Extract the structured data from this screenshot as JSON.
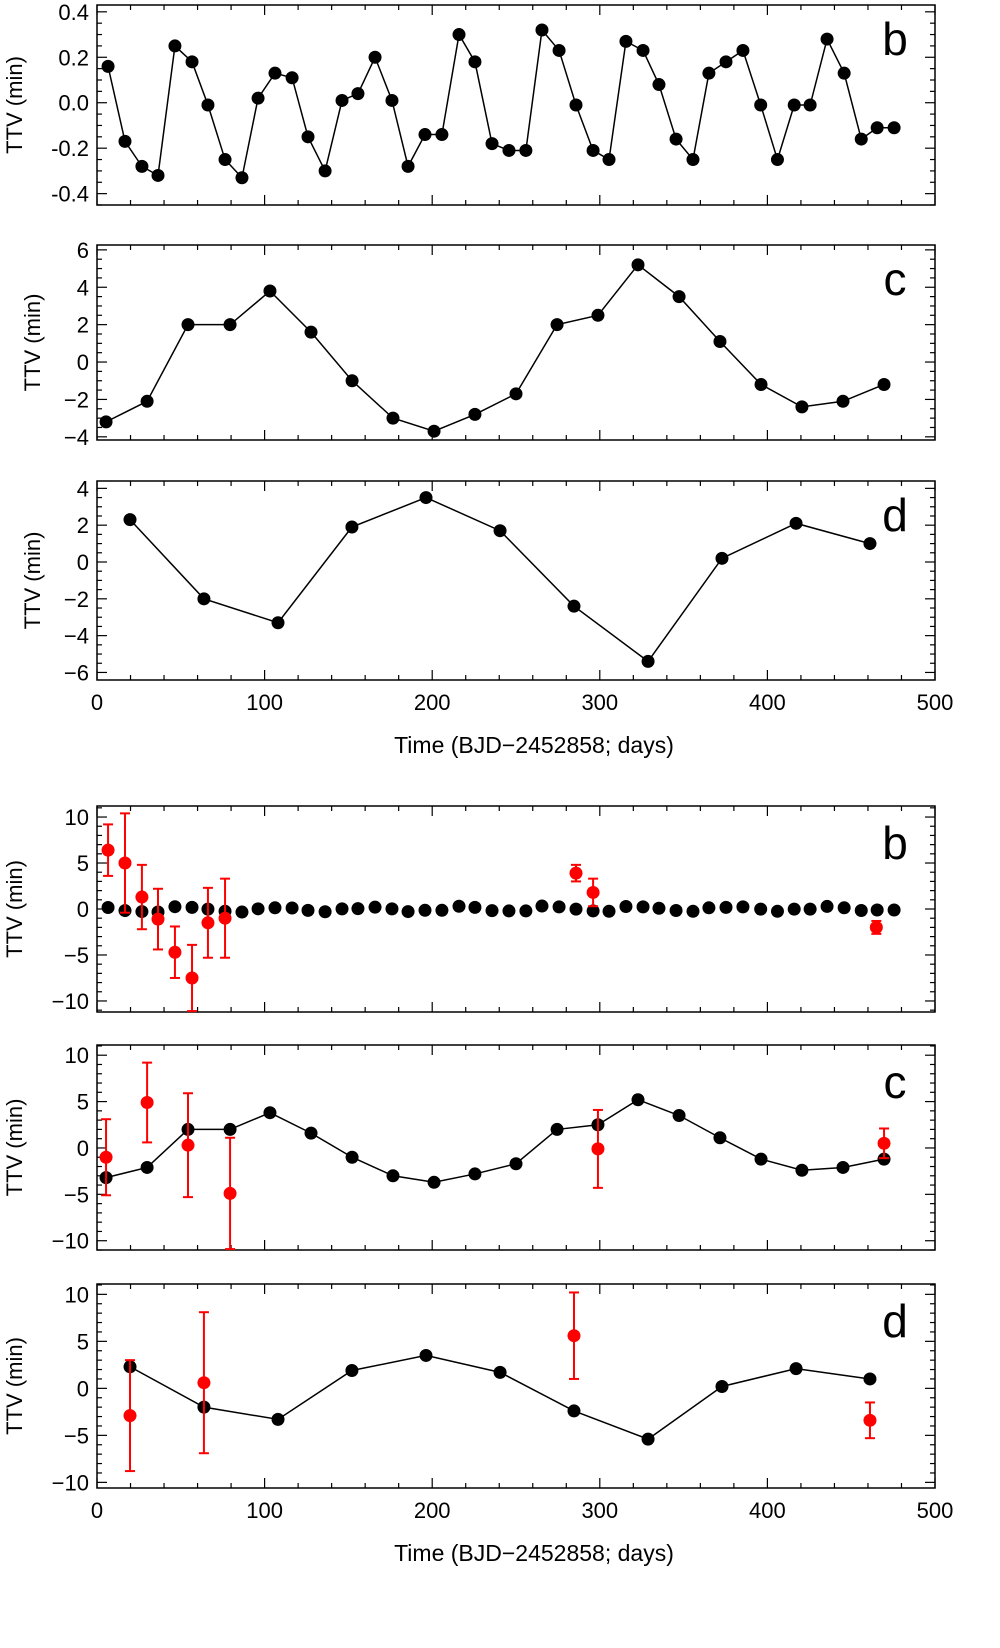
{
  "chart_data": [
    {
      "type": "line",
      "panel_label": "b",
      "ylabel": "TTV (min)",
      "xlim": [
        0,
        500
      ],
      "ylim": [
        -0.45,
        0.43
      ],
      "yticks": [
        -0.4,
        -0.2,
        0.0,
        0.2,
        0.4
      ],
      "ytick_labels": [
        "-0.4",
        "-0.2",
        "0.0",
        "0.2",
        "0.4"
      ],
      "show_xtick_labels": false,
      "model": {
        "x": [
          6.6,
          16.7,
          26.8,
          36.4,
          46.5,
          56.7,
          66.2,
          76.4,
          86.5,
          96.1,
          106.2,
          116.4,
          125.9,
          136.1,
          146.2,
          155.7,
          165.9,
          176,
          185.6,
          195.7,
          205.8,
          216,
          225.5,
          235.7,
          245.8,
          255.9,
          265.5,
          275.7,
          285.8,
          296,
          305.5,
          315.6,
          325.8,
          335.3,
          345.5,
          355.6,
          365.1,
          375.3,
          385.4,
          396,
          406,
          416,
          425.5,
          435.6,
          445.8,
          456,
          465.5,
          475.6
        ],
        "y": [
          0.16,
          -0.17,
          -0.28,
          -0.32,
          0.25,
          0.18,
          -0.01,
          -0.25,
          -0.33,
          0.02,
          0.13,
          0.11,
          -0.15,
          -0.3,
          0.01,
          0.04,
          0.2,
          0.01,
          -0.28,
          -0.14,
          -0.14,
          0.3,
          0.18,
          -0.18,
          -0.21,
          -0.21,
          0.32,
          0.23,
          -0.01,
          -0.21,
          -0.25,
          0.27,
          0.23,
          0.08,
          -0.16,
          -0.25,
          0.13,
          0.18,
          0.23,
          -0.01,
          -0.25,
          -0.01,
          -0.01,
          0.28,
          0.13,
          -0.16,
          -0.11,
          -0.11
        ]
      }
    },
    {
      "type": "line",
      "panel_label": "c",
      "ylabel": "TTV (min)",
      "xlim": [
        0,
        500
      ],
      "ylim": [
        -4.17,
        6.26
      ],
      "yticks": [
        -4,
        -2,
        0,
        2,
        4,
        6
      ],
      "ytick_labels": [
        "−4",
        "−2",
        "0",
        "2",
        "4",
        "6"
      ],
      "show_xtick_labels": false,
      "model": {
        "x": [
          5.4,
          29.9,
          54.3,
          79.4,
          103.2,
          127.7,
          152.2,
          176.6,
          201.1,
          225.5,
          250,
          274.5,
          298.9,
          322.8,
          347.3,
          371.7,
          396.2,
          420.6,
          445.1,
          469.6
        ],
        "y": [
          -3.2,
          -2.1,
          2.0,
          2.0,
          3.8,
          1.6,
          -1.0,
          -3.0,
          -3.7,
          -2.8,
          -1.7,
          2.0,
          2.5,
          5.2,
          3.5,
          1.1,
          -1.2,
          -2.4,
          -2.1,
          -1.2
        ]
      }
    },
    {
      "type": "line",
      "panel_label": "d",
      "ylabel": "TTV (min)",
      "xlabel": "Time (BJD−2452858; days)",
      "xlim": [
        0,
        500
      ],
      "ylim": [
        -6.41,
        4.4
      ],
      "yticks": [
        -6,
        -4,
        -2,
        0,
        2,
        4
      ],
      "ytick_labels": [
        "−6",
        "−4",
        "−2",
        "0",
        "2",
        "4"
      ],
      "show_xtick_labels": true,
      "model": {
        "x": [
          19.7,
          63.8,
          108,
          152.1,
          196.3,
          240.5,
          284.6,
          328.8,
          372.9,
          417.1,
          461.2
        ],
        "y": [
          2.3,
          -2.0,
          -3.3,
          1.9,
          3.5,
          1.7,
          -2.4,
          -5.4,
          0.2,
          2.1,
          1.0
        ]
      }
    },
    {
      "type": "line",
      "panel_label": "b",
      "ylabel": "TTV (min)",
      "xlim": [
        0,
        500
      ],
      "ylim": [
        -11.2,
        11.2
      ],
      "yticks": [
        -10,
        -5,
        0,
        5,
        10
      ],
      "ytick_labels": [
        "−10",
        "−5",
        "0",
        "5",
        "10"
      ],
      "show_xtick_labels": false,
      "model": {
        "x": [
          6.6,
          16.7,
          26.8,
          36.4,
          46.5,
          56.7,
          66.2,
          76.4,
          86.5,
          96.1,
          106.2,
          116.4,
          125.9,
          136.1,
          146.2,
          155.7,
          165.9,
          176,
          185.6,
          195.7,
          205.8,
          216,
          225.5,
          235.7,
          245.8,
          255.9,
          265.5,
          275.7,
          285.8,
          296,
          305.5,
          315.6,
          325.8,
          335.3,
          345.5,
          355.6,
          365.1,
          375.3,
          385.4,
          396,
          406,
          416,
          425.5,
          435.6,
          445.8,
          456,
          465.5,
          475.6
        ],
        "y": [
          0.16,
          -0.17,
          -0.28,
          -0.32,
          0.25,
          0.18,
          -0.01,
          -0.25,
          -0.33,
          0.02,
          0.13,
          0.11,
          -0.15,
          -0.3,
          0.01,
          0.04,
          0.2,
          0.01,
          -0.28,
          -0.14,
          -0.14,
          0.3,
          0.18,
          -0.18,
          -0.21,
          -0.21,
          0.32,
          0.23,
          -0.01,
          -0.21,
          -0.25,
          0.27,
          0.23,
          0.08,
          -0.16,
          -0.25,
          0.13,
          0.18,
          0.23,
          -0.01,
          -0.25,
          -0.01,
          -0.01,
          0.28,
          0.13,
          -0.16,
          -0.11,
          -0.11
        ],
        "connected": false
      },
      "observed": {
        "x": [
          6.6,
          16.7,
          26.8,
          36.4,
          46.5,
          56.7,
          66.2,
          76.4,
          285.8,
          296,
          465
        ],
        "y": [
          6.4,
          5.0,
          1.3,
          -1.1,
          -4.7,
          -7.5,
          -1.5,
          -1.0,
          3.9,
          1.8,
          -2.0
        ],
        "err": [
          2.8,
          5.4,
          3.5,
          3.3,
          2.8,
          3.6,
          3.8,
          4.3,
          0.9,
          1.5,
          0.7
        ]
      }
    },
    {
      "type": "line",
      "panel_label": "c",
      "ylabel": "TTV (min)",
      "xlim": [
        0,
        500
      ],
      "ylim": [
        -11.0,
        11.1
      ],
      "yticks": [
        -10,
        -5,
        0,
        5,
        10
      ],
      "ytick_labels": [
        "−10",
        "−5",
        "0",
        "5",
        "10"
      ],
      "show_xtick_labels": false,
      "model": {
        "x": [
          5.4,
          29.9,
          54.3,
          79.4,
          103.2,
          127.7,
          152.2,
          176.6,
          201.1,
          225.5,
          250,
          274.5,
          298.9,
          322.8,
          347.3,
          371.7,
          396.2,
          420.6,
          445.1,
          469.6
        ],
        "y": [
          -3.2,
          -2.1,
          2.0,
          2.0,
          3.8,
          1.6,
          -1.0,
          -3.0,
          -3.7,
          -2.8,
          -1.7,
          2.0,
          2.5,
          5.2,
          3.5,
          1.1,
          -1.2,
          -2.4,
          -2.1,
          -1.2
        ]
      },
      "observed": {
        "x": [
          5.4,
          29.9,
          54.3,
          79.4,
          298.9,
          469.6
        ],
        "y": [
          -1.0,
          4.9,
          0.3,
          -4.9,
          -0.1,
          0.5
        ],
        "err": [
          4.1,
          4.3,
          5.6,
          6.0,
          4.2,
          1.6
        ]
      }
    },
    {
      "type": "line",
      "panel_label": "d",
      "ylabel": "TTV (min)",
      "xlabel": "Time (BJD−2452858; days)",
      "xlim": [
        0,
        500
      ],
      "ylim": [
        -10.6,
        11.1
      ],
      "yticks": [
        -10,
        -5,
        0,
        5,
        10
      ],
      "ytick_labels": [
        "−10",
        "−5",
        "0",
        "5",
        "10"
      ],
      "show_xtick_labels": true,
      "model": {
        "x": [
          19.7,
          63.8,
          108,
          152.1,
          196.3,
          240.5,
          284.6,
          328.8,
          372.9,
          417.1,
          461.2
        ],
        "y": [
          2.3,
          -2.0,
          -3.3,
          1.9,
          3.5,
          1.7,
          -2.4,
          -5.4,
          0.2,
          2.1,
          1.0
        ]
      },
      "observed": {
        "x": [
          19.7,
          63.8,
          284.6,
          461.2
        ],
        "y": [
          -2.9,
          0.6,
          5.6,
          -3.4
        ],
        "err": [
          5.9,
          7.5,
          4.6,
          1.9
        ]
      }
    }
  ],
  "xticks": [
    0,
    100,
    200,
    300,
    400,
    500
  ],
  "xtick_labels": [
    "0",
    "100",
    "200",
    "300",
    "400",
    "500"
  ],
  "colors": {
    "model": "#000000",
    "observed": "#ff0000"
  }
}
